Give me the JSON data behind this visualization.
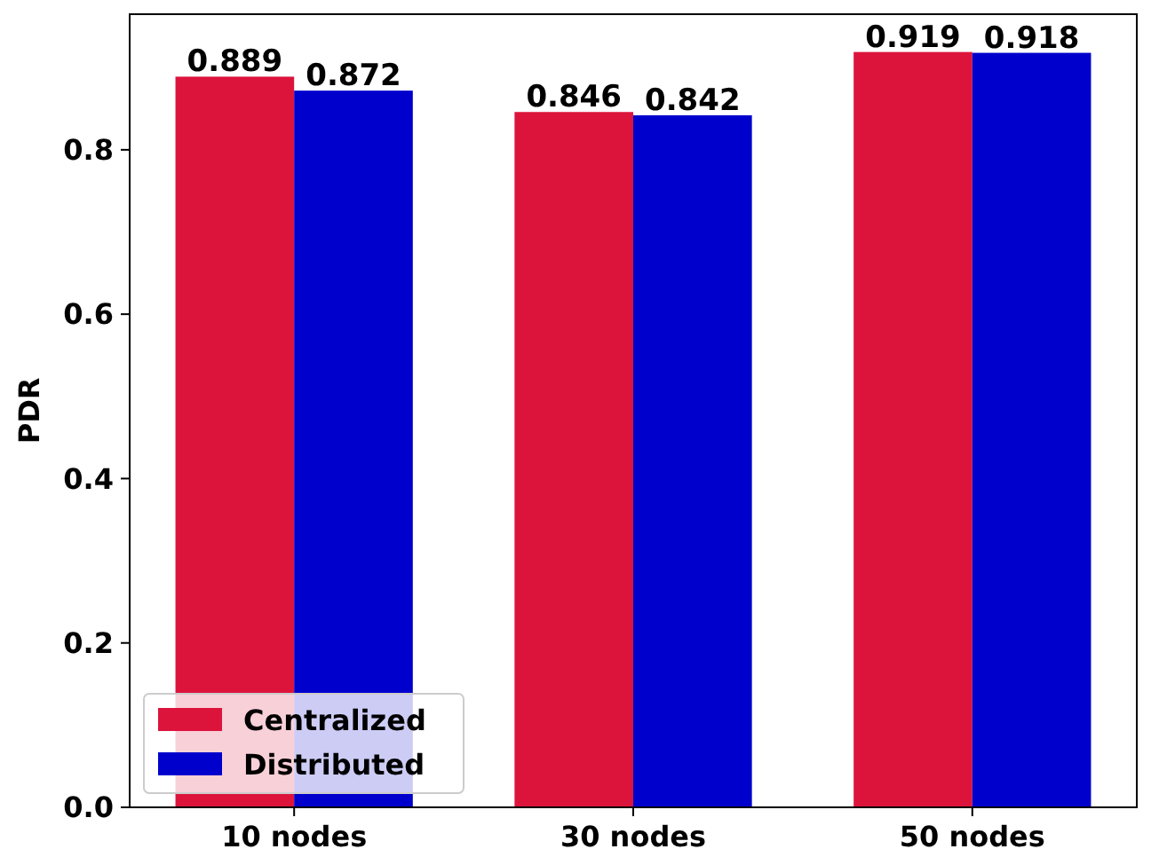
{
  "chart_data": {
    "type": "bar",
    "ylabel": "PDR",
    "categories": [
      "10 nodes",
      "30 nodes",
      "50 nodes"
    ],
    "series": [
      {
        "name": "Centralized",
        "color": "#dc143c",
        "values": [
          0.889,
          0.846,
          0.919
        ]
      },
      {
        "name": "Distributed",
        "color": "#0000cd",
        "values": [
          0.872,
          0.842,
          0.918
        ]
      }
    ],
    "ylim": [
      0,
      0.965
    ],
    "yticks": [
      {
        "value": 0,
        "label": "0.0"
      },
      {
        "value": 0.2,
        "label": "0.2"
      },
      {
        "value": 0.4,
        "label": "0.4"
      },
      {
        "value": 0.6,
        "label": "0.6"
      },
      {
        "value": 0.8,
        "label": "0.8"
      }
    ],
    "data_labels": true,
    "legend": "bottom left",
    "grid": false
  }
}
